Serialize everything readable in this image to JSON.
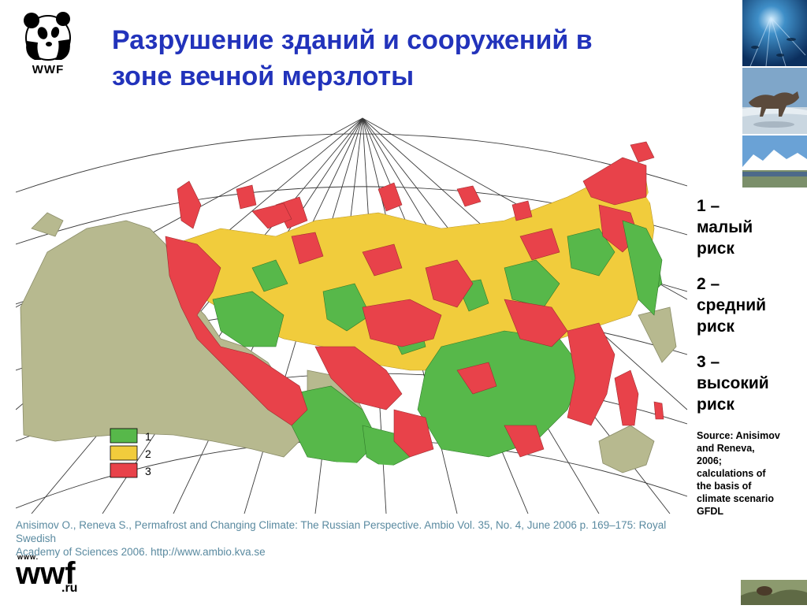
{
  "logo": {
    "caption": "WWF",
    "icon": "panda-icon"
  },
  "title_line1": "Разрушение зданий и сооружений в",
  "title_line2": "зоне вечной мерзлоты",
  "legend": {
    "items": [
      {
        "code": "1",
        "color": "#57b84a"
      },
      {
        "code": "2",
        "color": "#f1cc3c"
      },
      {
        "code": "3",
        "color": "#e8424a"
      }
    ]
  },
  "risk_labels": [
    {
      "line1": "1 –",
      "line2": "малый",
      "line3": "риск"
    },
    {
      "line1": "2 –",
      "line2": "средний",
      "line3": "риск"
    },
    {
      "line1": "3 –",
      "line2": "высокий",
      "line3": "риск"
    }
  ],
  "source_lines": [
    "Source: Anisimov",
    "and Reneva,",
    "2006;",
    "calculations of",
    "the basis of",
    "climate scenario",
    "GFDL"
  ],
  "citation_line1": "Anisimov O., Reneva S., Permafrost and Changing Climate: The Russian Perspective. Ambio Vol. 35, No. 4, June 2006 p. 169–175: Royal Swedish",
  "citation_line2": "Academy of Sciences 2006. http://www.ambio.kva.se",
  "bottom_logo": {
    "www": "www.",
    "wwf": "wwf",
    "ru": ".ru"
  },
  "colors": {
    "title": "#2233bb",
    "land_other": "#b7b98f",
    "low": "#57b84a",
    "medium": "#f1cc3c",
    "high": "#e8424a",
    "citation": "#5a8aa0"
  }
}
